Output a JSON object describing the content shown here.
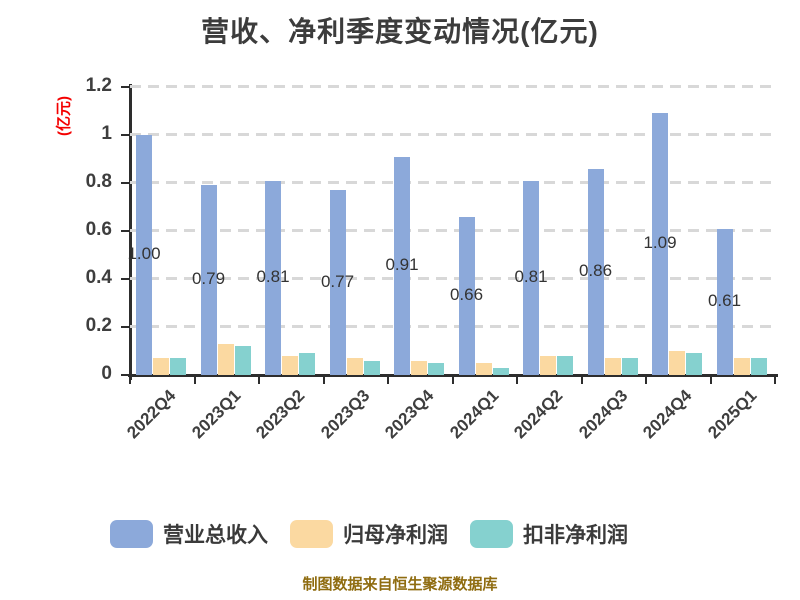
{
  "title": "营收、净利季度变动情况(亿元)",
  "y_axis_title": "(亿元)",
  "footer": "制图数据来自恒生聚源数据库",
  "colors": {
    "revenue_blue": "#8CA9DA",
    "net_profit_tan": "#FBD9A1",
    "non_gaap_teal": "#85D1CF",
    "grid_dash": "#D8D8D8",
    "axis_line": "#2D2D2D",
    "title_text": "#3C3C3C",
    "tick_text": "#3E3E3E",
    "bar_label_text": "#333333",
    "y_axis_title_red": "#F40000",
    "footer_gold": "#8F6C10",
    "background": "#FFFFFF"
  },
  "chart_data": {
    "type": "bar",
    "title": "营收、净利季度变动情况(亿元)",
    "xlabel": "",
    "ylabel": "(亿元)",
    "categories": [
      "2022Q4",
      "2023Q1",
      "2023Q2",
      "2023Q3",
      "2023Q4",
      "2024Q1",
      "2024Q2",
      "2024Q3",
      "2024Q4",
      "2025Q1"
    ],
    "series": [
      {
        "name": "营业总收入",
        "key": "revenue",
        "color": "#8CA9DA",
        "values": [
          1.0,
          0.79,
          0.81,
          0.77,
          0.91,
          0.66,
          0.81,
          0.86,
          1.09,
          0.61
        ],
        "bar_labels": [
          "1.00",
          "0.79",
          "0.81",
          "0.77",
          "0.91",
          "0.66",
          "0.81",
          "0.86",
          "1.09",
          "0.61"
        ]
      },
      {
        "name": "归母净利润",
        "key": "net-profit",
        "color": "#FBD9A1",
        "values": [
          0.07,
          0.13,
          0.08,
          0.07,
          0.06,
          0.05,
          0.08,
          0.07,
          0.1,
          0.07
        ]
      },
      {
        "name": "扣非净利润",
        "key": "non-gaap-profit",
        "color": "#85D1CF",
        "values": [
          0.07,
          0.12,
          0.09,
          0.06,
          0.05,
          0.03,
          0.08,
          0.07,
          0.09,
          0.07
        ]
      }
    ],
    "ylim": [
      0,
      1.2
    ],
    "yticks": [
      {
        "value": 0,
        "label": "0"
      },
      {
        "value": 0.2,
        "label": "0.2"
      },
      {
        "value": 0.4,
        "label": "0.4"
      },
      {
        "value": 0.6,
        "label": "0.6"
      },
      {
        "value": 0.8,
        "label": "0.8"
      },
      {
        "value": 1.0,
        "label": "1"
      },
      {
        "value": 1.2,
        "label": "1.2"
      }
    ],
    "grid": true,
    "grid_style": "dashed",
    "xtick_rotation": -45,
    "legend_position": "bottom"
  },
  "legend": {
    "items": [
      {
        "key": "revenue",
        "label": "营业总收入",
        "color": "#8CA9DA"
      },
      {
        "key": "net-profit",
        "label": "归母净利润",
        "color": "#FBD9A1"
      },
      {
        "key": "non-gaap-profit",
        "label": "扣非净利润",
        "color": "#85D1CF"
      }
    ]
  }
}
